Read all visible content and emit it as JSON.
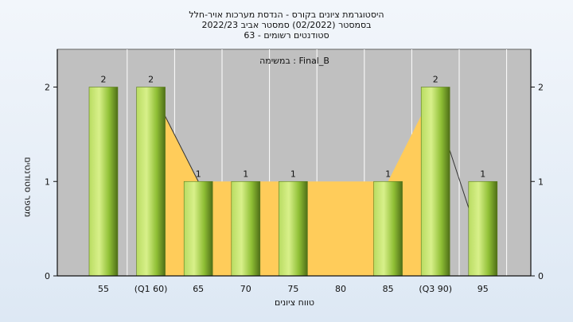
{
  "header": {
    "line1": "היסטוגרמת ציונים בקורס - הנדסת מערכות אויר-חלל",
    "line2": "בסמסטר  (02/2022)  סמסטר אביב 2022/23",
    "line3": "סטודנטים רשומים - 63"
  },
  "chart_data": {
    "type": "bar",
    "task_label": "במשימה : Final_B",
    "xlabel": "טווח ציונים",
    "ylabel": "מספר סטודנטים",
    "categories": [
      "55",
      "(Q1 60)",
      "65",
      "70",
      "75",
      "80",
      "85",
      "(Q3 90)",
      "95"
    ],
    "values": [
      2,
      2,
      1,
      1,
      1,
      0,
      1,
      2,
      1
    ],
    "data_labels": [
      "2",
      "2",
      "1",
      "1",
      "1",
      "",
      "1",
      "2",
      "1"
    ],
    "ylim": [
      0,
      2.4
    ],
    "yticks": [
      0,
      1,
      2
    ],
    "ytick_labels": [
      "0",
      "1",
      "2"
    ],
    "iqr_shading": {
      "from_index": 1,
      "to_index": 7
    },
    "grid": true,
    "colors": {
      "plot_bg": "#c0c0c0",
      "iqr_fill": "#ffcc5a",
      "bar_light": "#d8f08a",
      "bar_mid": "#9fcd3e",
      "bar_dark": "#4e6e17",
      "grid": "#ffffff"
    }
  }
}
